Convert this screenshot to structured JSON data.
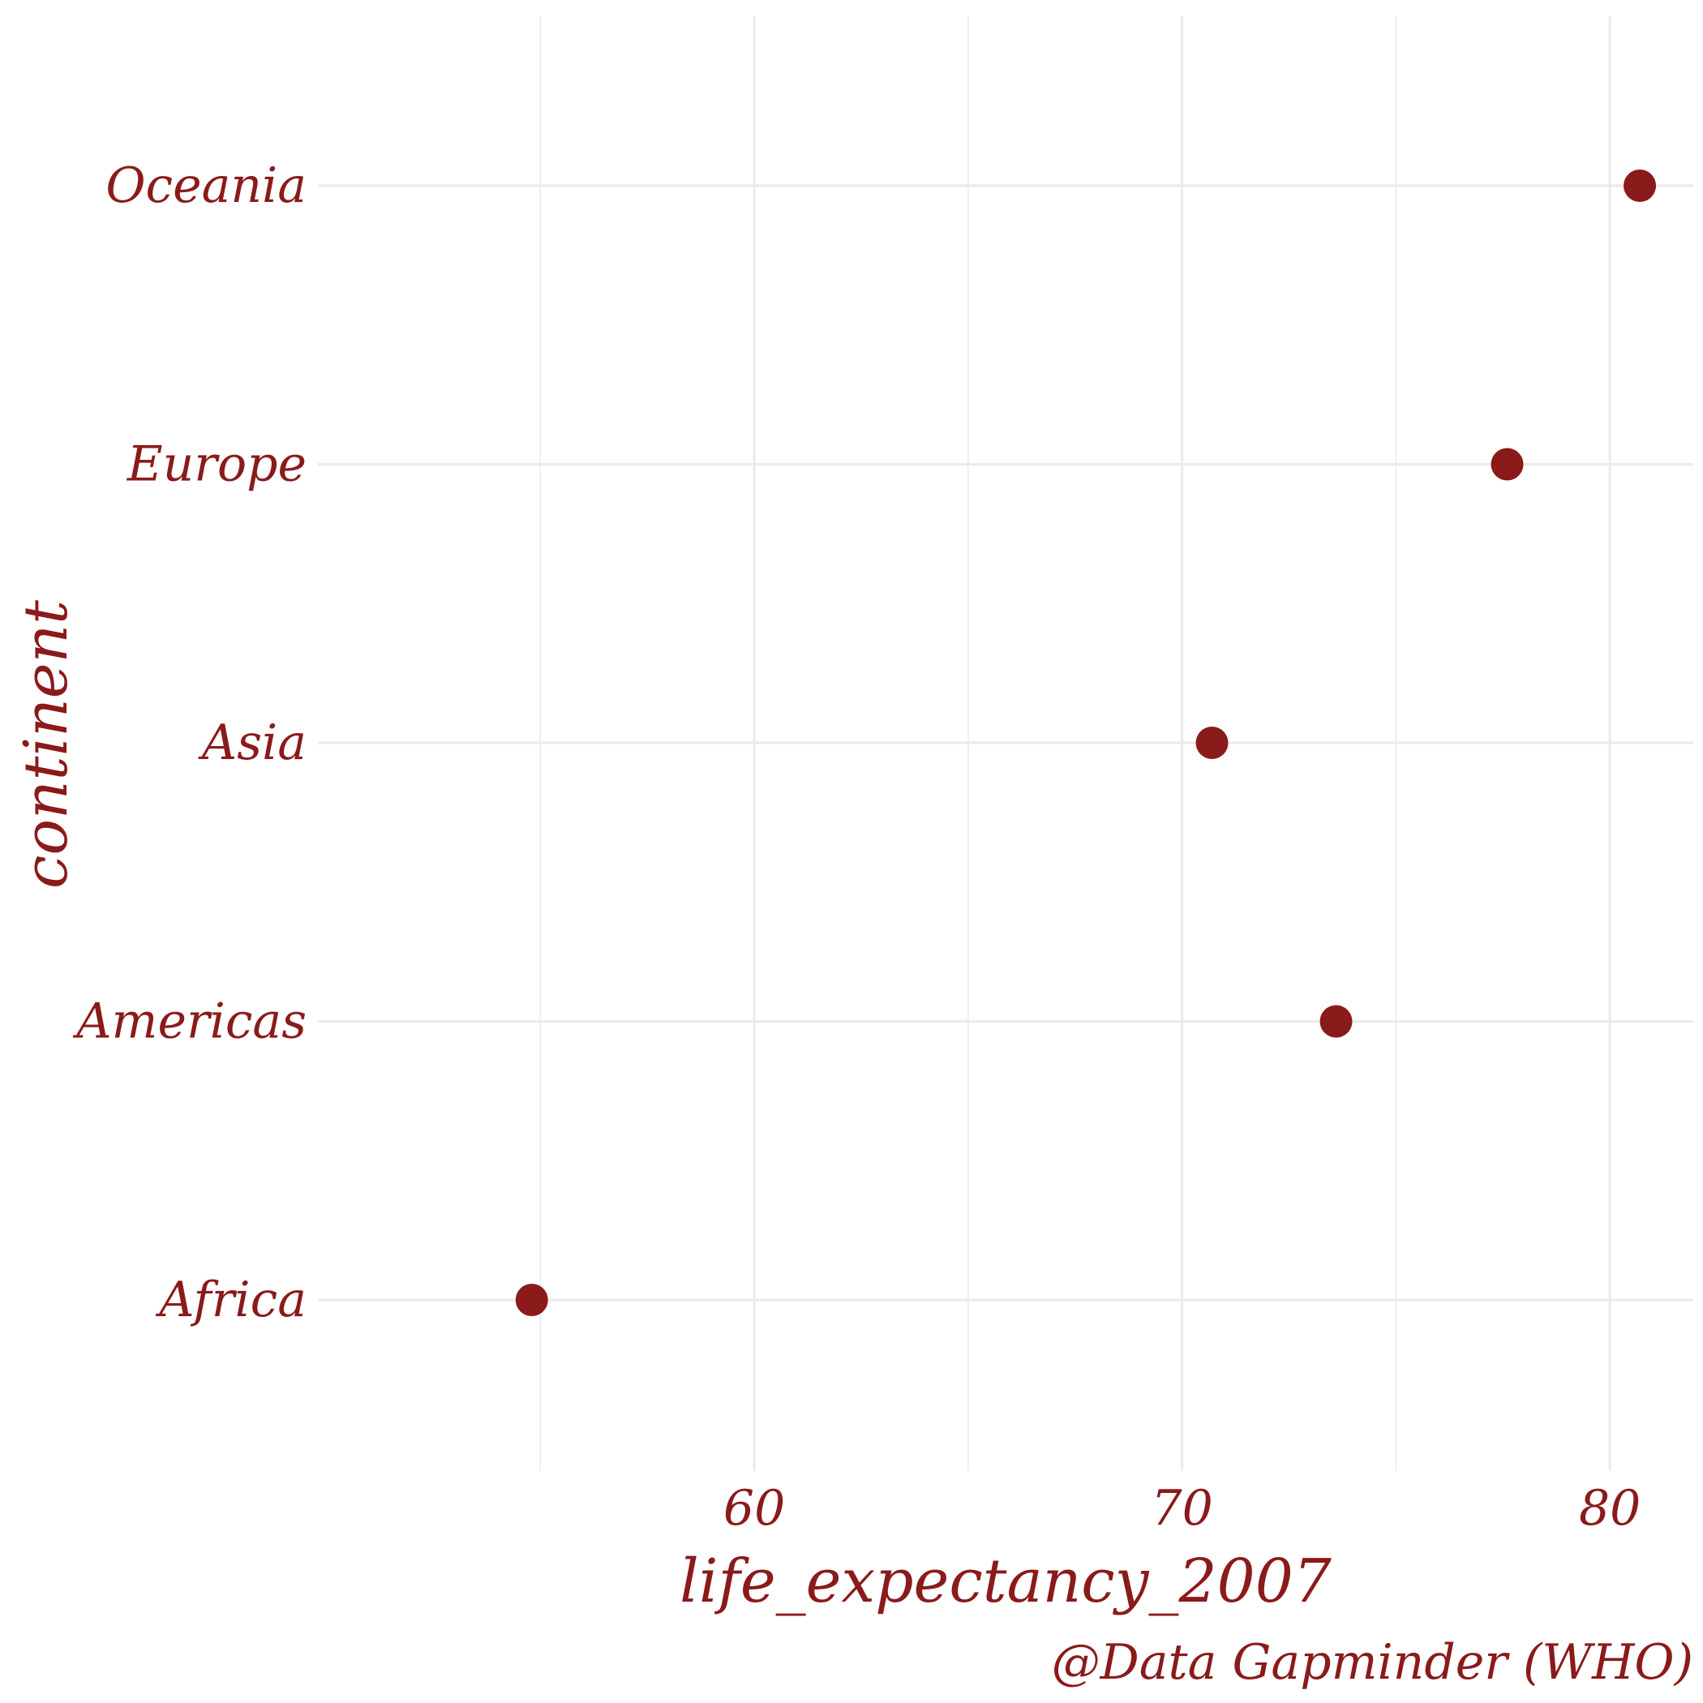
{
  "chart_data": {
    "type": "scatter",
    "xlabel": "life_expectancy_2007",
    "ylabel": "continent",
    "caption": "@Data Gapminder (WHO)",
    "categories": [
      "Africa",
      "Americas",
      "Asia",
      "Europe",
      "Oceania"
    ],
    "values": [
      54.8,
      73.6,
      70.7,
      77.6,
      80.7
    ],
    "x_ticks": [
      60,
      70,
      80
    ],
    "xlim": [
      49.8,
      81.95
    ],
    "grid": true,
    "legend": "none",
    "point_color": "#8b1a1a",
    "text_color": "#8b1a1a"
  }
}
